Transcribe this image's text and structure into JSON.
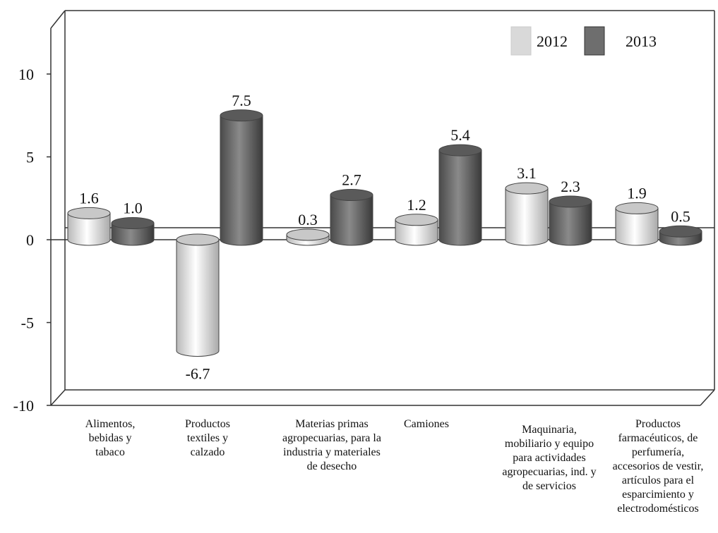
{
  "chart_data": {
    "type": "bar",
    "categories": [
      [
        "Alimentos,",
        "bebidas y",
        "tabaco"
      ],
      [
        "Productos",
        "textiles y",
        "calzado"
      ],
      [
        "Materias primas",
        "agropecuarias, para la",
        "industria y materiales",
        "de desecho"
      ],
      [
        "Camiones"
      ],
      [
        "Maquinaria,",
        "mobiliario y equipo",
        "para actividades",
        "agropecuarias, ind. y",
        "de servicios"
      ],
      [
        "Productos",
        "farmacéuticos, de",
        "perfumería,",
        "accesorios de vestir,",
        "artículos para el",
        "esparcimiento y",
        "electrodomésticos"
      ]
    ],
    "series": [
      {
        "name": "2012",
        "values": [
          1.6,
          -6.7,
          0.3,
          1.2,
          3.1,
          1.9
        ],
        "labels": [
          "1.6",
          "-6.7",
          "0.3",
          "1.2",
          "3.1",
          "1.9"
        ]
      },
      {
        "name": "2013",
        "values": [
          1.0,
          7.5,
          2.7,
          5.4,
          2.3,
          0.5
        ],
        "labels": [
          "1.0",
          "7.5",
          "2.7",
          "5.4",
          "2.3",
          "0.5"
        ]
      }
    ],
    "ylim": [
      -10,
      10
    ],
    "yticks": [
      "-10",
      "-5",
      "0",
      "5",
      "10"
    ],
    "legend_position": "top-right",
    "grid": false,
    "colors": {
      "2012": "#d9d9d9",
      "2013": "#6e6e6e"
    }
  }
}
